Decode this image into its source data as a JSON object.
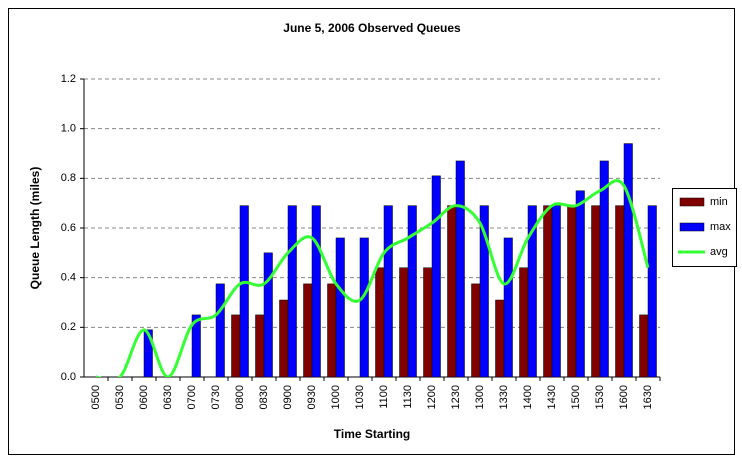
{
  "chart_data": {
    "type": "bar-line",
    "title": "June 5, 2006 Observed Queues",
    "x_label": "Time Starting",
    "y_label": "Queue Length (miles)",
    "categories": [
      "0500",
      "0530",
      "0600",
      "0630",
      "0700",
      "0730",
      "0800",
      "0830",
      "0900",
      "0930",
      "1000",
      "1030",
      "1100",
      "1130",
      "1200",
      "1230",
      "1300",
      "1330",
      "1400",
      "1430",
      "1500",
      "1530",
      "1600",
      "1630"
    ],
    "series": [
      {
        "name": "min",
        "color": "#800000",
        "kind": "bar",
        "values": [
          0,
          0,
          0,
          0,
          0,
          0,
          0.25,
          0.25,
          0.31,
          0.375,
          0.375,
          0,
          0.44,
          0.44,
          0.44,
          0.69,
          0.375,
          0.31,
          0.44,
          0.69,
          0.69,
          0.69,
          0.69,
          0.25
        ]
      },
      {
        "name": "max",
        "color": "#0000ff",
        "kind": "bar",
        "values": [
          0,
          0,
          0.19,
          0,
          0.25,
          0.375,
          0.69,
          0.5,
          0.69,
          0.69,
          0.56,
          0.56,
          0.69,
          0.69,
          0.81,
          0.87,
          0.69,
          0.56,
          0.69,
          0.69,
          0.75,
          0.87,
          0.94,
          0.69
        ]
      },
      {
        "name": "avg",
        "color": "#33ff33",
        "kind": "line",
        "values": [
          0,
          0,
          0.19,
          0,
          0.21,
          0.25,
          0.375,
          0.375,
          0.5,
          0.56,
          0.375,
          0.31,
          0.5,
          0.56,
          0.62,
          0.69,
          0.62,
          0.375,
          0.56,
          0.69,
          0.69,
          0.75,
          0.77,
          0.44
        ]
      }
    ],
    "ylim": [
      0,
      1.2
    ],
    "yticks": [
      {
        "value": 0,
        "label": "0.0"
      },
      {
        "value": 0.2,
        "label": "0.2"
      },
      {
        "value": 0.4,
        "label": "0.4"
      },
      {
        "value": 0.6,
        "label": "0.6"
      },
      {
        "value": 0.8,
        "label": "0.8"
      },
      {
        "value": 1,
        "label": "1.0"
      },
      {
        "value": 1.2,
        "label": "1.2"
      }
    ],
    "grid": true,
    "legend": "right"
  }
}
